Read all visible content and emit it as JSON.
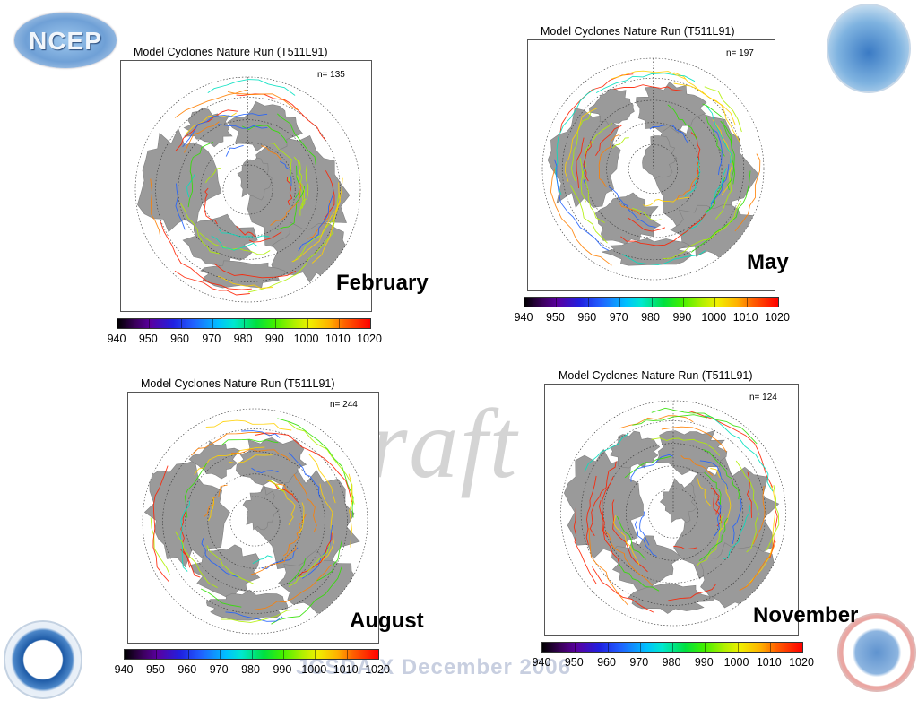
{
  "logos": {
    "top_left": "NCEP",
    "bottom_left": "noaa"
  },
  "watermark": {
    "draft": "Draft",
    "date": "JCSDA X December 2006"
  },
  "colorbar": {
    "labels": [
      "940",
      "950",
      "960",
      "970",
      "980",
      "990",
      "1000",
      "1010",
      "1020"
    ]
  },
  "panels": [
    {
      "id": "february",
      "title": "Model Cyclones Nature Run (T511L91)",
      "count": "n= 135",
      "month": "February"
    },
    {
      "id": "may",
      "title": "Model Cyclones Nature Run (T511L91)",
      "count": "n= 197",
      "month": "May"
    },
    {
      "id": "august",
      "title": "Model Cyclones Nature Run (T511L91)",
      "count": "n= 244",
      "month": "August"
    },
    {
      "id": "november",
      "title": "Model Cyclones Nature Run (T511L91)",
      "count": "n= 124",
      "month": "November"
    }
  ],
  "colors": {
    "land": "#9a9a9a",
    "grid": "#333333",
    "track_palette": [
      "#ff2000",
      "#ff8000",
      "#ffd000",
      "#b0f000",
      "#30e000",
      "#00e0c0",
      "#2060ff"
    ]
  }
}
